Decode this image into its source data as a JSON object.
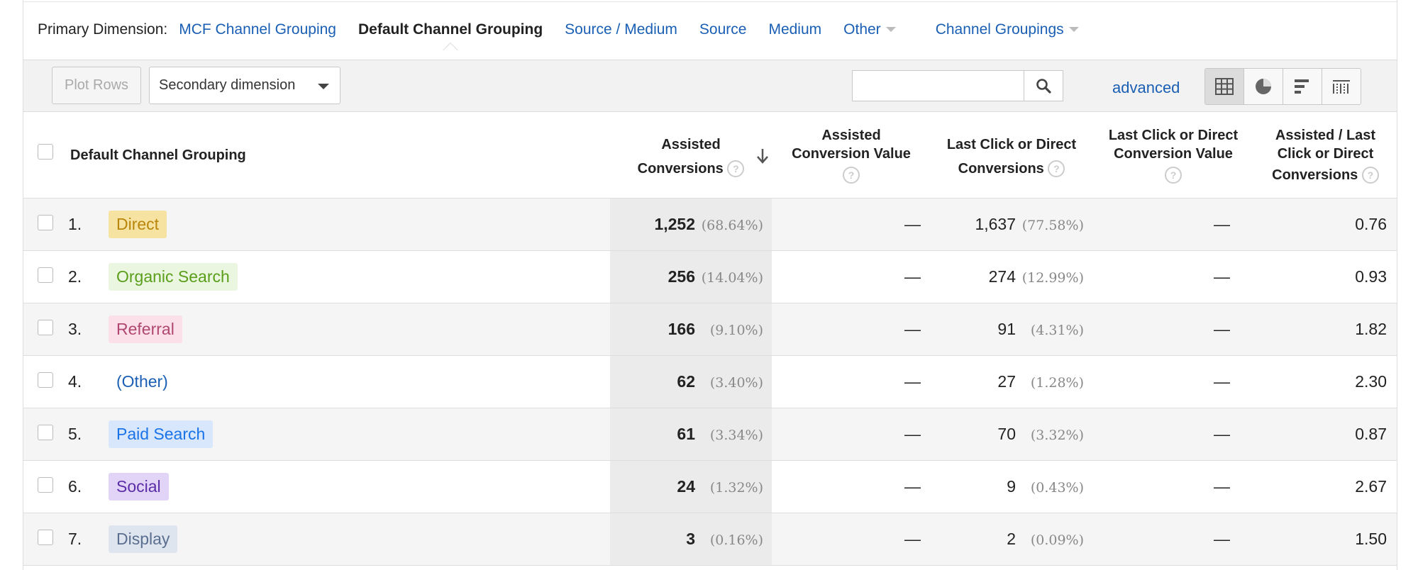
{
  "primary_dimension": {
    "label": "Primary Dimension:",
    "options": [
      "MCF Channel Grouping",
      "Default Channel Grouping",
      "Source / Medium",
      "Source",
      "Medium",
      "Other",
      "Channel Groupings"
    ],
    "active": "Default Channel Grouping"
  },
  "toolbar": {
    "plot_rows": "Plot Rows",
    "secondary_dimension": "Secondary dimension",
    "search_value": "",
    "advanced": "advanced"
  },
  "table": {
    "headers": {
      "dimension": "Default Channel Grouping",
      "assisted_conv_1": "Assisted",
      "assisted_conv_2": "Conversions",
      "assisted_value_1": "Assisted",
      "assisted_value_2": "Conversion Value",
      "last_click_1": "Last Click or Direct",
      "last_click_2": "Conversions",
      "last_click_value_1": "Last Click or Direct",
      "last_click_value_2": "Conversion Value",
      "ratio_1": "Assisted / Last",
      "ratio_2": "Click or Direct",
      "ratio_3": "Conversions"
    },
    "rows": [
      {
        "index": "1.",
        "channel": "Direct",
        "tag_bg": "#f6e3a1",
        "tag_fg": "#b8860b",
        "assisted": "1,252",
        "assisted_pct": "(68.64%)",
        "assisted_value": "—",
        "last_click": "1,637",
        "last_click_pct": "(77.58%)",
        "last_click_value": "—",
        "ratio": "0.76"
      },
      {
        "index": "2.",
        "channel": "Organic Search",
        "tag_bg": "#eaf6e0",
        "tag_fg": "#5a9e1a",
        "assisted": "256",
        "assisted_pct": "(14.04%)",
        "assisted_value": "—",
        "last_click": "274",
        "last_click_pct": "(12.99%)",
        "last_click_value": "—",
        "ratio": "0.93"
      },
      {
        "index": "3.",
        "channel": "Referral",
        "tag_bg": "#fbe0ea",
        "tag_fg": "#b0476e",
        "assisted": "166",
        "assisted_pct": "(9.10%)",
        "assisted_value": "—",
        "last_click": "91",
        "last_click_pct": "(4.31%)",
        "last_click_value": "—",
        "ratio": "1.82"
      },
      {
        "index": "4.",
        "channel": "(Other)",
        "tag_bg": "transparent",
        "tag_fg": "#1a5fb4",
        "assisted": "62",
        "assisted_pct": "(3.40%)",
        "assisted_value": "—",
        "last_click": "27",
        "last_click_pct": "(1.28%)",
        "last_click_value": "—",
        "ratio": "2.30"
      },
      {
        "index": "5.",
        "channel": "Paid Search",
        "tag_bg": "#d8e7fb",
        "tag_fg": "#1a73e8",
        "assisted": "61",
        "assisted_pct": "(3.34%)",
        "assisted_value": "—",
        "last_click": "70",
        "last_click_pct": "(3.32%)",
        "last_click_value": "—",
        "ratio": "0.87"
      },
      {
        "index": "6.",
        "channel": "Social",
        "tag_bg": "#e2d4f7",
        "tag_fg": "#5b2ca8",
        "assisted": "24",
        "assisted_pct": "(1.32%)",
        "assisted_value": "—",
        "last_click": "9",
        "last_click_pct": "(0.43%)",
        "last_click_value": "—",
        "ratio": "2.67"
      },
      {
        "index": "7.",
        "channel": "Display",
        "tag_bg": "#dfe5ef",
        "tag_fg": "#5a6f8f",
        "assisted": "3",
        "assisted_pct": "(0.16%)",
        "assisted_value": "—",
        "last_click": "2",
        "last_click_pct": "(0.09%)",
        "last_click_value": "—",
        "ratio": "1.50"
      }
    ]
  },
  "icons": {
    "search": "search-icon",
    "views": [
      "grid-view-icon",
      "pie-view-icon",
      "bar-view-icon",
      "comparison-view-icon"
    ],
    "sort": "sort-down-arrow-icon",
    "help": "question-mark-icon"
  },
  "colors": {
    "link": "#1a5fb4",
    "sorted_column_bg": "#ebebeb"
  }
}
